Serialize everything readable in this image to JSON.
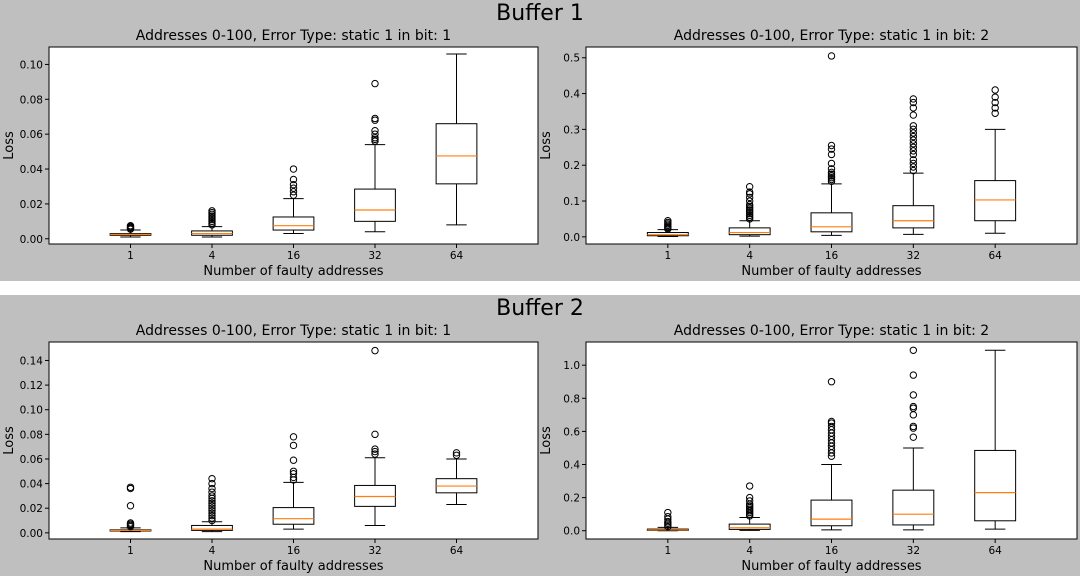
{
  "figure": {
    "sections": [
      {
        "title": "Buffer 1"
      },
      {
        "title": "Buffer 2"
      }
    ]
  },
  "chart_data": [
    {
      "type": "box",
      "section": 0,
      "title": "Addresses 0-100, Error Type: static 1 in bit: 1",
      "xlabel": "Number of faulty addresses",
      "ylabel": "Loss",
      "categories": [
        "1",
        "4",
        "16",
        "32",
        "64"
      ],
      "ylim": [
        -0.003,
        0.11
      ],
      "yticks": [
        0.0,
        0.02,
        0.04,
        0.06,
        0.08,
        0.1
      ],
      "ytick_labels": [
        "0.00",
        "0.02",
        "0.04",
        "0.06",
        "0.08",
        "0.10"
      ],
      "boxes": [
        {
          "whislo": 0.001,
          "q1": 0.002,
          "med": 0.0025,
          "q3": 0.003,
          "whishi": 0.005,
          "fliers": [
            0.0055,
            0.006,
            0.0065,
            0.007,
            0.0075
          ]
        },
        {
          "whislo": 0.001,
          "q1": 0.002,
          "med": 0.003,
          "q3": 0.0045,
          "whishi": 0.007,
          "fliers": [
            0.008,
            0.009,
            0.01,
            0.011,
            0.012,
            0.013,
            0.014,
            0.015,
            0.016
          ]
        },
        {
          "whislo": 0.003,
          "q1": 0.005,
          "med": 0.0075,
          "q3": 0.0125,
          "whishi": 0.023,
          "fliers": [
            0.025,
            0.027,
            0.029,
            0.031,
            0.034,
            0.04
          ]
        },
        {
          "whislo": 0.004,
          "q1": 0.01,
          "med": 0.0165,
          "q3": 0.0285,
          "whishi": 0.054,
          "fliers": [
            0.056,
            0.057,
            0.058,
            0.06,
            0.062,
            0.068,
            0.069,
            0.089
          ]
        },
        {
          "whislo": 0.008,
          "q1": 0.0315,
          "med": 0.0475,
          "q3": 0.066,
          "whishi": 0.106,
          "fliers": []
        }
      ]
    },
    {
      "type": "box",
      "section": 0,
      "title": "Addresses 0-100, Error Type: static 1 in bit: 2",
      "xlabel": "Number of faulty addresses",
      "ylabel": "Loss",
      "categories": [
        "1",
        "4",
        "16",
        "32",
        "64"
      ],
      "ylim": [
        -0.02,
        0.53
      ],
      "yticks": [
        0.0,
        0.1,
        0.2,
        0.3,
        0.4,
        0.5
      ],
      "ytick_labels": [
        "0.0",
        "0.1",
        "0.2",
        "0.3",
        "0.4",
        "0.5"
      ],
      "boxes": [
        {
          "whislo": 0.001,
          "q1": 0.003,
          "med": 0.006,
          "q3": 0.012,
          "whishi": 0.02,
          "fliers": [
            0.022,
            0.025,
            0.028,
            0.032,
            0.036,
            0.04,
            0.045
          ]
        },
        {
          "whislo": 0.002,
          "q1": 0.006,
          "med": 0.012,
          "q3": 0.025,
          "whishi": 0.045,
          "fliers": [
            0.05,
            0.055,
            0.06,
            0.065,
            0.07,
            0.075,
            0.08,
            0.085,
            0.09,
            0.1,
            0.11,
            0.12,
            0.125,
            0.14
          ]
        },
        {
          "whislo": 0.004,
          "q1": 0.014,
          "med": 0.028,
          "q3": 0.067,
          "whishi": 0.148,
          "fliers": [
            0.155,
            0.16,
            0.165,
            0.17,
            0.175,
            0.18,
            0.19,
            0.205,
            0.23,
            0.245,
            0.255,
            0.505
          ]
        },
        {
          "whislo": 0.007,
          "q1": 0.025,
          "med": 0.045,
          "q3": 0.087,
          "whishi": 0.178,
          "fliers": [
            0.185,
            0.195,
            0.205,
            0.215,
            0.23,
            0.24,
            0.25,
            0.26,
            0.27,
            0.28,
            0.29,
            0.3,
            0.31,
            0.34,
            0.36,
            0.375,
            0.385
          ]
        },
        {
          "whislo": 0.01,
          "q1": 0.045,
          "med": 0.103,
          "q3": 0.157,
          "whishi": 0.3,
          "fliers": [
            0.345,
            0.36,
            0.375,
            0.39,
            0.41
          ]
        }
      ]
    },
    {
      "type": "box",
      "section": 1,
      "title": "Addresses 0-100, Error Type: static 1 in bit: 1",
      "xlabel": "Number of faulty addresses",
      "ylabel": "Loss",
      "categories": [
        "1",
        "4",
        "16",
        "32",
        "64"
      ],
      "ylim": [
        -0.005,
        0.155
      ],
      "yticks": [
        0.0,
        0.02,
        0.04,
        0.06,
        0.08,
        0.1,
        0.12,
        0.14
      ],
      "ytick_labels": [
        "0.00",
        "0.02",
        "0.04",
        "0.06",
        "0.08",
        "0.10",
        "0.12",
        "0.14"
      ],
      "boxes": [
        {
          "whislo": 0.001,
          "q1": 0.0015,
          "med": 0.002,
          "q3": 0.0025,
          "whishi": 0.004,
          "fliers": [
            0.005,
            0.006,
            0.007,
            0.008,
            0.022,
            0.036,
            0.037
          ]
        },
        {
          "whislo": 0.001,
          "q1": 0.002,
          "med": 0.003,
          "q3": 0.006,
          "whishi": 0.009,
          "fliers": [
            0.01,
            0.012,
            0.014,
            0.016,
            0.018,
            0.02,
            0.022,
            0.024,
            0.026,
            0.028,
            0.03,
            0.033,
            0.036,
            0.04,
            0.044
          ]
        },
        {
          "whislo": 0.003,
          "q1": 0.007,
          "med": 0.0115,
          "q3": 0.0205,
          "whishi": 0.041,
          "fliers": [
            0.043,
            0.045,
            0.048,
            0.05,
            0.059,
            0.071,
            0.078
          ]
        },
        {
          "whislo": 0.006,
          "q1": 0.0215,
          "med": 0.0295,
          "q3": 0.0385,
          "whishi": 0.061,
          "fliers": [
            0.064,
            0.066,
            0.068,
            0.08,
            0.148
          ]
        },
        {
          "whislo": 0.023,
          "q1": 0.0325,
          "med": 0.038,
          "q3": 0.044,
          "whishi": 0.06,
          "fliers": [
            0.063,
            0.065
          ]
        }
      ]
    },
    {
      "type": "box",
      "section": 1,
      "title": "Addresses 0-100, Error Type: static 1 in bit: 2",
      "xlabel": "Number of faulty addresses",
      "ylabel": "Loss",
      "categories": [
        "1",
        "4",
        "16",
        "32",
        "64"
      ],
      "ylim": [
        -0.05,
        1.14
      ],
      "yticks": [
        0.0,
        0.2,
        0.4,
        0.6,
        0.8,
        1.0
      ],
      "ytick_labels": [
        "0.0",
        "0.2",
        "0.4",
        "0.6",
        "0.8",
        "1.0"
      ],
      "boxes": [
        {
          "whislo": 0.0,
          "q1": 0.002,
          "med": 0.005,
          "q3": 0.01,
          "whishi": 0.02,
          "fliers": [
            0.025,
            0.035,
            0.045,
            0.055,
            0.07,
            0.085,
            0.11
          ]
        },
        {
          "whislo": 0.002,
          "q1": 0.008,
          "med": 0.018,
          "q3": 0.04,
          "whishi": 0.08,
          "fliers": [
            0.09,
            0.1,
            0.11,
            0.12,
            0.13,
            0.14,
            0.15,
            0.16,
            0.18,
            0.2,
            0.27
          ]
        },
        {
          "whislo": 0.005,
          "q1": 0.03,
          "med": 0.07,
          "q3": 0.185,
          "whishi": 0.4,
          "fliers": [
            0.45,
            0.47,
            0.49,
            0.51,
            0.53,
            0.55,
            0.57,
            0.59,
            0.61,
            0.63,
            0.65,
            0.66,
            0.9
          ]
        },
        {
          "whislo": 0.005,
          "q1": 0.035,
          "med": 0.1,
          "q3": 0.245,
          "whishi": 0.5,
          "fliers": [
            0.565,
            0.62,
            0.63,
            0.7,
            0.74,
            0.75,
            0.82,
            0.94,
            1.09
          ]
        },
        {
          "whislo": 0.01,
          "q1": 0.06,
          "med": 0.23,
          "q3": 0.485,
          "whishi": 1.09,
          "fliers": []
        }
      ]
    }
  ]
}
